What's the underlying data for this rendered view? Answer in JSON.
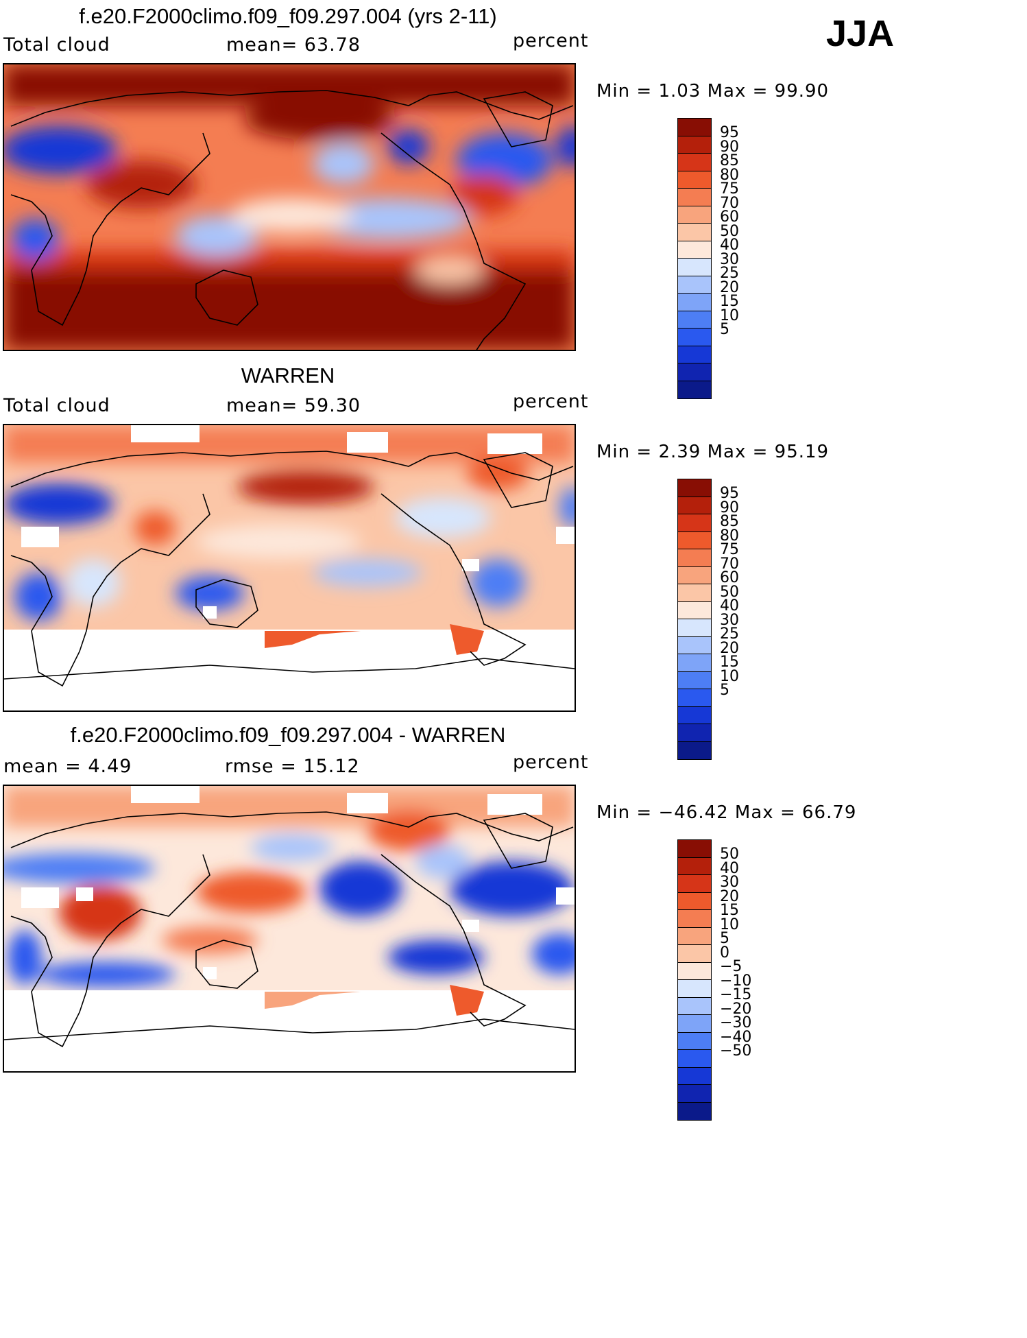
{
  "season": "JJA",
  "colors": {
    "abs_scale": [
      "#0b1a8a",
      "#1024b0",
      "#1638d6",
      "#2a59ef",
      "#4d7ef5",
      "#7ea4f8",
      "#a9c4fb",
      "#d7e6fd",
      "#fde8db",
      "#fbc6a7",
      "#f8a47d",
      "#f47d52",
      "#ee5a2c",
      "#d63518",
      "#b4200b",
      "#880e04"
    ],
    "diff_scale": [
      "#0b1a8a",
      "#1024b0",
      "#1638d6",
      "#2a59ef",
      "#4d7ef5",
      "#7ea4f8",
      "#a9c4fb",
      "#d7e6fd",
      "#fde8db",
      "#fbc6a7",
      "#f8a47d",
      "#f47d52",
      "#ee5a2c",
      "#d63518",
      "#b4200b",
      "#880e04"
    ],
    "land_outline": "#000000",
    "missing": "#ffffff"
  },
  "panels": [
    {
      "title": "f.e20.F2000climo.f09_f09.297.004 (yrs 2-11)",
      "left_label": "Total cloud",
      "center_label": "mean=  63.78",
      "right_label": "percent",
      "minmax": "Min =    1.03 Max =   99.90",
      "colorbar_labels": [
        "95",
        "90",
        "85",
        "80",
        "75",
        "70",
        "60",
        "50",
        "40",
        "30",
        "25",
        "20",
        "15",
        "10",
        "5"
      ]
    },
    {
      "title": "WARREN",
      "left_label": "Total cloud",
      "center_label": "mean=  59.30",
      "right_label": "percent",
      "minmax": "Min =    2.39 Max =   95.19",
      "colorbar_labels": [
        "95",
        "90",
        "85",
        "80",
        "75",
        "70",
        "60",
        "50",
        "40",
        "30",
        "25",
        "20",
        "15",
        "10",
        "5"
      ]
    },
    {
      "title": "f.e20.F2000climo.f09_f09.297.004 - WARREN",
      "left_label": "mean =    4.49",
      "center_label": "rmse =   15.12",
      "right_label": "percent",
      "minmax": "Min = −46.42 Max =   66.79",
      "colorbar_labels": [
        "50",
        "40",
        "30",
        "20",
        "15",
        "10",
        "5",
        "0",
        "−5",
        "−10",
        "−15",
        "−20",
        "−30",
        "−40",
        "−50"
      ]
    }
  ]
}
